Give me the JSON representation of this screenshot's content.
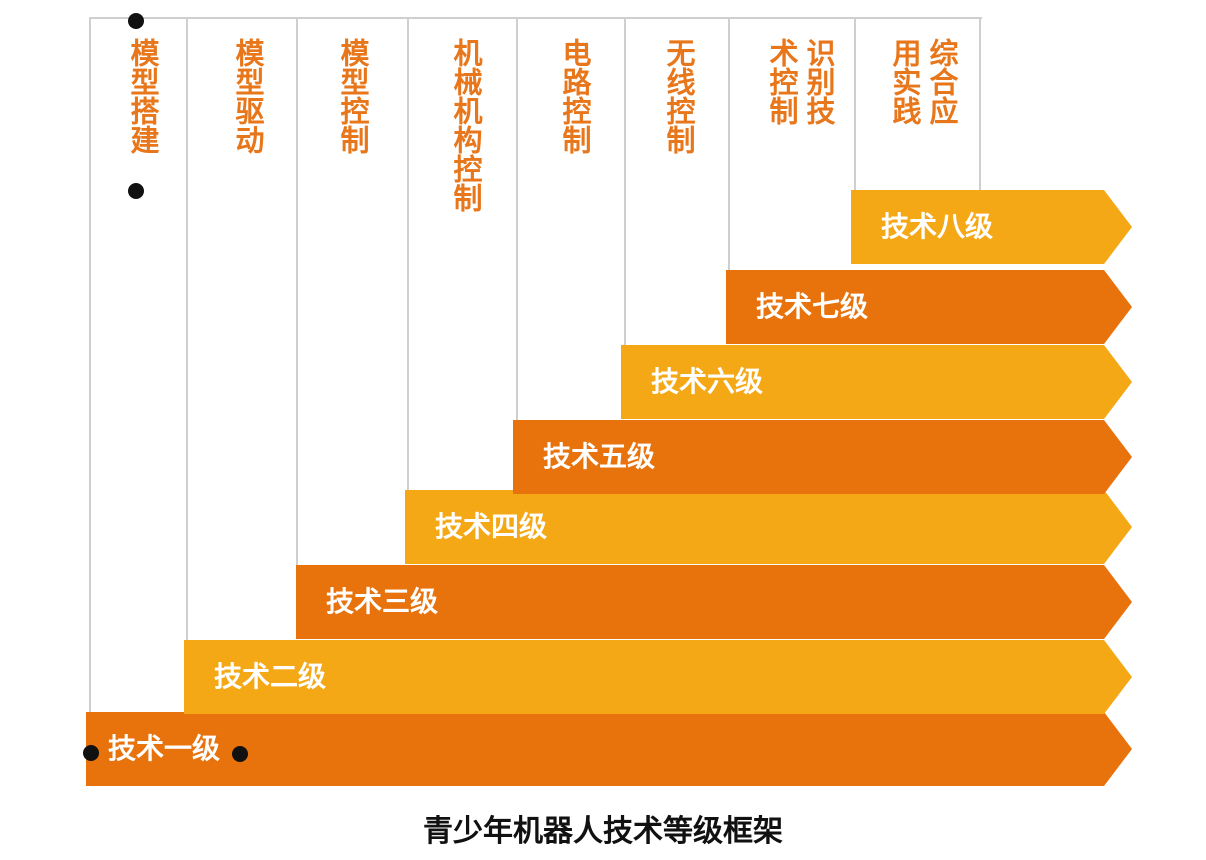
{
  "columns": [
    "模型搭建",
    "模型驱动",
    "模型控制",
    "机械机构控制",
    "电路控制",
    "无线控制",
    "识别技术控制",
    "综合应用实践"
  ],
  "levels": [
    "技术一级",
    "技术二级",
    "技术三级",
    "技术四级",
    "技术五级",
    "技术六级",
    "技术七级",
    "技术八级"
  ],
  "caption": "青少年机器人技术等级框架",
  "colors": {
    "dark_orange": "#e8720c",
    "light_orange": "#f5a816",
    "column_text": "#e8761a",
    "grid_line": "#cfcfcf"
  }
}
